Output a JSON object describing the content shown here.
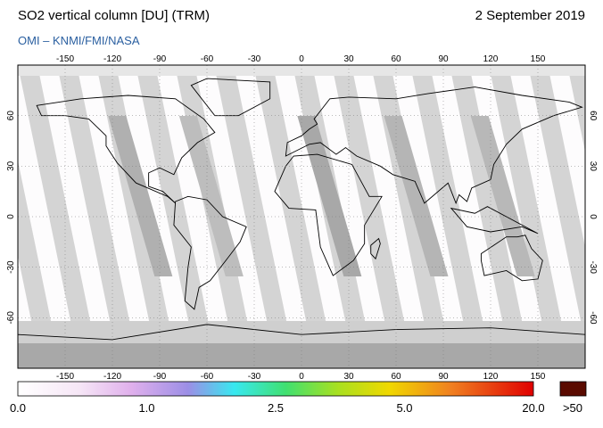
{
  "header": {
    "title": "SO2 vertical column [DU] (TRM)",
    "date": "2 September 2019",
    "subtitle": "OMI  –  KNMI/FMI/NASA"
  },
  "map": {
    "lon_ticks": [
      -150,
      -120,
      -90,
      -60,
      -30,
      0,
      30,
      60,
      90,
      120,
      150
    ],
    "lat_ticks": [
      60,
      30,
      0,
      -30,
      -60
    ]
  },
  "colorbar": {
    "labels": [
      "0.0",
      "1.0",
      "2.5",
      "5.0",
      "20.0"
    ],
    "overflow_label": ">50"
  }
}
